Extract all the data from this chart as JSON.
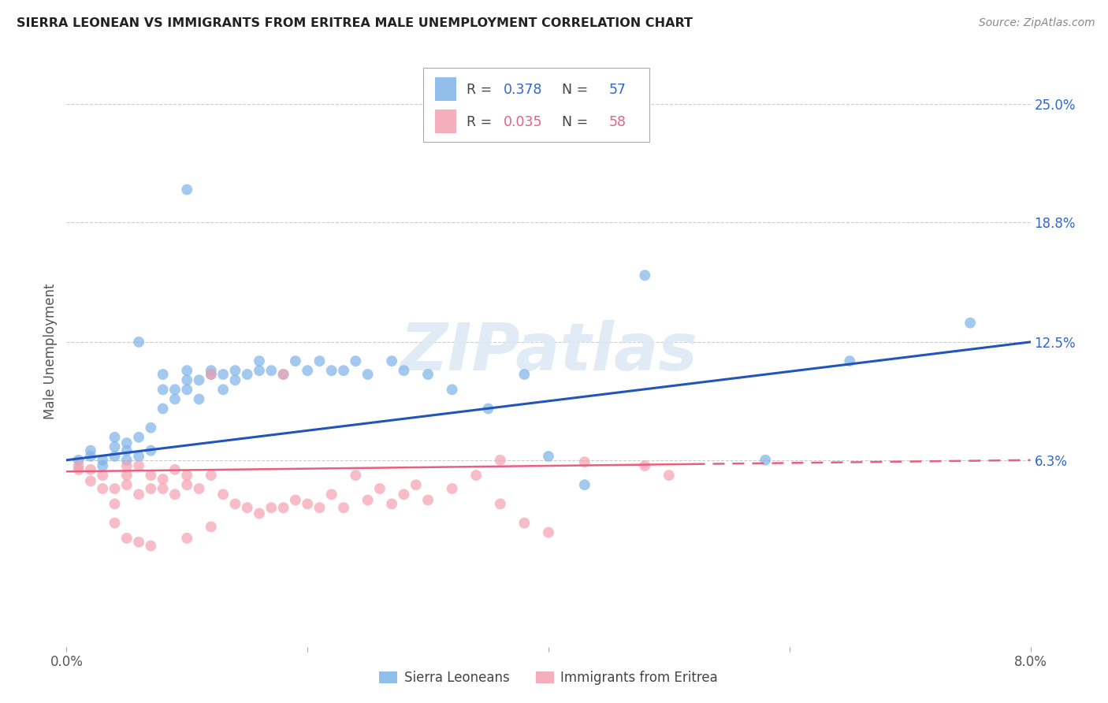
{
  "title": "SIERRA LEONEAN VS IMMIGRANTS FROM ERITREA MALE UNEMPLOYMENT CORRELATION CHART",
  "source": "Source: ZipAtlas.com",
  "ylabel": "Male Unemployment",
  "ytick_labels": [
    "6.3%",
    "12.5%",
    "18.8%",
    "25.0%"
  ],
  "ytick_values": [
    0.063,
    0.125,
    0.188,
    0.25
  ],
  "xmin": 0.0,
  "xmax": 0.08,
  "ymin": -0.035,
  "ymax": 0.275,
  "blue_color": "#7EB3E8",
  "pink_color": "#F4A0B0",
  "blue_line_color": "#2255BB",
  "pink_line_color": "#E86080",
  "blue_R": 0.378,
  "blue_N": 57,
  "pink_R": 0.035,
  "pink_N": 58,
  "legend_label_blue": "Sierra Leoneans",
  "legend_label_pink": "Immigrants from Eritrea",
  "watermark": "ZIPatlas",
  "blue_x": [
    0.001,
    0.002,
    0.002,
    0.003,
    0.003,
    0.004,
    0.004,
    0.004,
    0.005,
    0.005,
    0.005,
    0.006,
    0.006,
    0.006,
    0.007,
    0.007,
    0.008,
    0.008,
    0.008,
    0.009,
    0.009,
    0.01,
    0.01,
    0.01,
    0.011,
    0.011,
    0.012,
    0.012,
    0.013,
    0.013,
    0.014,
    0.014,
    0.015,
    0.016,
    0.016,
    0.017,
    0.018,
    0.019,
    0.02,
    0.021,
    0.022,
    0.023,
    0.024,
    0.025,
    0.027,
    0.028,
    0.03,
    0.032,
    0.035,
    0.038,
    0.04,
    0.043,
    0.048,
    0.058,
    0.065,
    0.075,
    0.01
  ],
  "blue_y": [
    0.063,
    0.065,
    0.068,
    0.06,
    0.063,
    0.065,
    0.07,
    0.075,
    0.063,
    0.068,
    0.072,
    0.065,
    0.075,
    0.125,
    0.068,
    0.08,
    0.09,
    0.1,
    0.108,
    0.095,
    0.1,
    0.105,
    0.11,
    0.1,
    0.105,
    0.095,
    0.108,
    0.11,
    0.1,
    0.108,
    0.105,
    0.11,
    0.108,
    0.11,
    0.115,
    0.11,
    0.108,
    0.115,
    0.11,
    0.115,
    0.11,
    0.11,
    0.115,
    0.108,
    0.115,
    0.11,
    0.108,
    0.1,
    0.09,
    0.108,
    0.065,
    0.05,
    0.16,
    0.063,
    0.115,
    0.135,
    0.205
  ],
  "pink_x": [
    0.001,
    0.001,
    0.002,
    0.002,
    0.003,
    0.003,
    0.004,
    0.004,
    0.005,
    0.005,
    0.005,
    0.006,
    0.006,
    0.007,
    0.007,
    0.008,
    0.008,
    0.009,
    0.009,
    0.01,
    0.01,
    0.011,
    0.012,
    0.012,
    0.013,
    0.014,
    0.015,
    0.016,
    0.017,
    0.018,
    0.018,
    0.019,
    0.02,
    0.021,
    0.022,
    0.023,
    0.024,
    0.025,
    0.026,
    0.027,
    0.028,
    0.029,
    0.03,
    0.032,
    0.034,
    0.036,
    0.038,
    0.04,
    0.043,
    0.048,
    0.004,
    0.005,
    0.006,
    0.007,
    0.036,
    0.05,
    0.01,
    0.012
  ],
  "pink_y": [
    0.058,
    0.06,
    0.052,
    0.058,
    0.048,
    0.055,
    0.04,
    0.048,
    0.055,
    0.05,
    0.06,
    0.045,
    0.06,
    0.048,
    0.055,
    0.053,
    0.048,
    0.045,
    0.058,
    0.05,
    0.055,
    0.048,
    0.108,
    0.055,
    0.045,
    0.04,
    0.038,
    0.035,
    0.038,
    0.038,
    0.108,
    0.042,
    0.04,
    0.038,
    0.045,
    0.038,
    0.055,
    0.042,
    0.048,
    0.04,
    0.045,
    0.05,
    0.042,
    0.048,
    0.055,
    0.04,
    0.03,
    0.025,
    0.062,
    0.06,
    0.03,
    0.022,
    0.02,
    0.018,
    0.063,
    0.055,
    0.022,
    0.028
  ]
}
